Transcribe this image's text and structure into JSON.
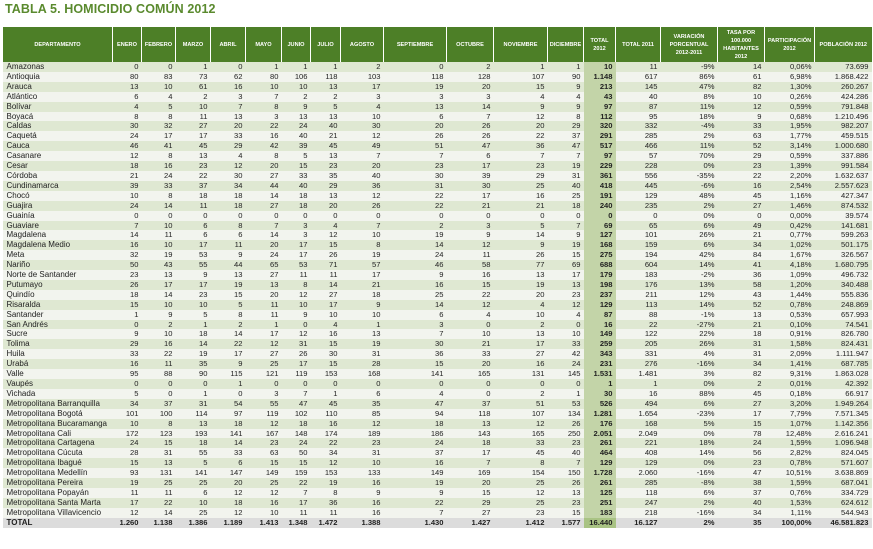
{
  "title": "TABLA 5. HOMICIDIO COMÚN 2012",
  "headers": [
    "DEPARTAMENTO",
    "ENERO",
    "FEBRERO",
    "MARZO",
    "ABRIL",
    "MAYO",
    "JUNIO",
    "JULIO",
    "AGOSTO",
    "SEPTIEMBRE",
    "OCTUBRE",
    "NOVIEMBRE",
    "DICIEMBRE",
    "TOTAL 2012",
    "TOTAL 2011",
    "VARIACIÓN PORCENTUAL 2012-2011",
    "TASA POR 100.000 HABITANTES 2012",
    "PARTICIPACIÓN 2012",
    "POBLACIÓN 2012"
  ],
  "rows": [
    [
      "Amazonas",
      "0",
      "0",
      "1",
      "0",
      "1",
      "1",
      "1",
      "2",
      "0",
      "2",
      "1",
      "1",
      "10",
      "11",
      "-9%",
      "14",
      "0,06%",
      "73.699"
    ],
    [
      "Antioquia",
      "80",
      "83",
      "73",
      "62",
      "80",
      "106",
      "118",
      "103",
      "118",
      "128",
      "107",
      "90",
      "1.148",
      "617",
      "86%",
      "61",
      "6,98%",
      "1.868.422"
    ],
    [
      "Arauca",
      "13",
      "10",
      "61",
      "16",
      "10",
      "10",
      "13",
      "17",
      "19",
      "20",
      "15",
      "9",
      "213",
      "145",
      "47%",
      "82",
      "1,30%",
      "260.267"
    ],
    [
      "Atlántico",
      "6",
      "4",
      "2",
      "3",
      "7",
      "2",
      "2",
      "3",
      "3",
      "3",
      "4",
      "4",
      "43",
      "40",
      "8%",
      "10",
      "0,26%",
      "424.286"
    ],
    [
      "Bolívar",
      "4",
      "5",
      "10",
      "7",
      "8",
      "9",
      "5",
      "4",
      "13",
      "14",
      "9",
      "9",
      "97",
      "87",
      "11%",
      "12",
      "0,59%",
      "791.848"
    ],
    [
      "Boyacá",
      "8",
      "8",
      "11",
      "13",
      "3",
      "13",
      "13",
      "10",
      "6",
      "7",
      "12",
      "8",
      "112",
      "95",
      "18%",
      "9",
      "0,68%",
      "1.210.496"
    ],
    [
      "Caldas",
      "30",
      "32",
      "27",
      "20",
      "22",
      "24",
      "40",
      "30",
      "20",
      "26",
      "20",
      "29",
      "320",
      "332",
      "-4%",
      "33",
      "1,95%",
      "982.207"
    ],
    [
      "Caquetá",
      "24",
      "17",
      "17",
      "33",
      "16",
      "40",
      "21",
      "12",
      "26",
      "26",
      "22",
      "37",
      "291",
      "285",
      "2%",
      "63",
      "1,77%",
      "459.515"
    ],
    [
      "Cauca",
      "46",
      "41",
      "45",
      "29",
      "42",
      "39",
      "45",
      "49",
      "51",
      "47",
      "36",
      "47",
      "517",
      "466",
      "11%",
      "52",
      "3,14%",
      "1.000.680"
    ],
    [
      "Casanare",
      "12",
      "8",
      "13",
      "4",
      "8",
      "5",
      "13",
      "7",
      "7",
      "6",
      "7",
      "7",
      "97",
      "57",
      "70%",
      "29",
      "0,59%",
      "337.886"
    ],
    [
      "Cesar",
      "18",
      "16",
      "23",
      "12",
      "20",
      "15",
      "23",
      "20",
      "23",
      "17",
      "23",
      "19",
      "229",
      "228",
      "0%",
      "23",
      "1,39%",
      "991.584"
    ],
    [
      "Córdoba",
      "21",
      "24",
      "22",
      "30",
      "27",
      "33",
      "35",
      "40",
      "30",
      "39",
      "29",
      "31",
      "361",
      "556",
      "-35%",
      "22",
      "2,20%",
      "1.632.637"
    ],
    [
      "Cundinamarca",
      "39",
      "33",
      "37",
      "34",
      "44",
      "40",
      "29",
      "36",
      "31",
      "30",
      "25",
      "40",
      "418",
      "445",
      "-6%",
      "16",
      "2,54%",
      "2.557.623"
    ],
    [
      "Chocó",
      "10",
      "8",
      "18",
      "18",
      "14",
      "18",
      "13",
      "12",
      "22",
      "17",
      "16",
      "25",
      "191",
      "129",
      "48%",
      "45",
      "1,16%",
      "427.347"
    ],
    [
      "Guajira",
      "24",
      "14",
      "11",
      "18",
      "27",
      "18",
      "20",
      "26",
      "22",
      "21",
      "21",
      "18",
      "240",
      "235",
      "2%",
      "27",
      "1,46%",
      "874.532"
    ],
    [
      "Guainía",
      "0",
      "0",
      "0",
      "0",
      "0",
      "0",
      "0",
      "0",
      "0",
      "0",
      "0",
      "0",
      "0",
      "0",
      "0%",
      "0",
      "0,00%",
      "39.574"
    ],
    [
      "Guaviare",
      "7",
      "10",
      "6",
      "8",
      "7",
      "3",
      "4",
      "7",
      "2",
      "3",
      "5",
      "7",
      "69",
      "65",
      "6%",
      "49",
      "0,42%",
      "141.681"
    ],
    [
      "Magdalena",
      "14",
      "11",
      "6",
      "6",
      "14",
      "3",
      "12",
      "10",
      "19",
      "9",
      "14",
      "9",
      "127",
      "101",
      "26%",
      "21",
      "0,77%",
      "599.263"
    ],
    [
      "Magdalena Medio",
      "16",
      "10",
      "17",
      "11",
      "20",
      "17",
      "15",
      "8",
      "14",
      "12",
      "9",
      "19",
      "168",
      "159",
      "6%",
      "34",
      "1,02%",
      "501.175"
    ],
    [
      "Meta",
      "32",
      "19",
      "53",
      "9",
      "24",
      "17",
      "26",
      "19",
      "24",
      "11",
      "26",
      "15",
      "275",
      "194",
      "42%",
      "84",
      "1,67%",
      "326.567"
    ],
    [
      "Nariño",
      "50",
      "43",
      "55",
      "44",
      "65",
      "53",
      "71",
      "57",
      "46",
      "58",
      "77",
      "69",
      "688",
      "604",
      "14%",
      "41",
      "4,18%",
      "1.680.795"
    ],
    [
      "Norte de Santander",
      "23",
      "13",
      "9",
      "13",
      "27",
      "11",
      "11",
      "17",
      "9",
      "16",
      "13",
      "17",
      "179",
      "183",
      "-2%",
      "36",
      "1,09%",
      "496.732"
    ],
    [
      "Putumayo",
      "26",
      "17",
      "17",
      "19",
      "13",
      "8",
      "14",
      "21",
      "16",
      "15",
      "19",
      "13",
      "198",
      "176",
      "13%",
      "58",
      "1,20%",
      "340.488"
    ],
    [
      "Quindío",
      "18",
      "14",
      "23",
      "15",
      "20",
      "12",
      "27",
      "18",
      "25",
      "22",
      "20",
      "23",
      "237",
      "211",
      "12%",
      "43",
      "1,44%",
      "555.836"
    ],
    [
      "Risaralda",
      "15",
      "10",
      "10",
      "5",
      "11",
      "10",
      "17",
      "9",
      "14",
      "12",
      "4",
      "12",
      "129",
      "113",
      "14%",
      "52",
      "0,78%",
      "248.869"
    ],
    [
      "Santander",
      "1",
      "9",
      "5",
      "8",
      "11",
      "9",
      "10",
      "10",
      "6",
      "4",
      "10",
      "4",
      "87",
      "88",
      "-1%",
      "13",
      "0,53%",
      "657.993"
    ],
    [
      "San Andrés",
      "0",
      "2",
      "1",
      "2",
      "1",
      "0",
      "4",
      "1",
      "3",
      "0",
      "2",
      "0",
      "16",
      "22",
      "-27%",
      "21",
      "0,10%",
      "74.541"
    ],
    [
      "Sucre",
      "9",
      "10",
      "18",
      "14",
      "17",
      "12",
      "16",
      "13",
      "7",
      "10",
      "13",
      "10",
      "149",
      "122",
      "22%",
      "18",
      "0,91%",
      "826.780"
    ],
    [
      "Tolima",
      "29",
      "16",
      "14",
      "22",
      "12",
      "31",
      "15",
      "19",
      "30",
      "21",
      "17",
      "33",
      "259",
      "205",
      "26%",
      "31",
      "1,58%",
      "824.431"
    ],
    [
      "Huila",
      "33",
      "22",
      "19",
      "17",
      "27",
      "26",
      "30",
      "31",
      "36",
      "33",
      "27",
      "42",
      "343",
      "331",
      "4%",
      "31",
      "2,09%",
      "1.111.947"
    ],
    [
      "Urabá",
      "16",
      "11",
      "35",
      "9",
      "25",
      "17",
      "15",
      "28",
      "15",
      "20",
      "16",
      "24",
      "231",
      "276",
      "-16%",
      "34",
      "1,41%",
      "687.785"
    ],
    [
      "Valle",
      "95",
      "88",
      "90",
      "115",
      "121",
      "119",
      "153",
      "168",
      "141",
      "165",
      "131",
      "145",
      "1.531",
      "1.481",
      "3%",
      "82",
      "9,31%",
      "1.863.028"
    ],
    [
      "Vaupés",
      "0",
      "0",
      "0",
      "1",
      "0",
      "0",
      "0",
      "0",
      "0",
      "0",
      "0",
      "0",
      "1",
      "1",
      "0%",
      "2",
      "0,01%",
      "42.392"
    ],
    [
      "Vichada",
      "5",
      "0",
      "1",
      "0",
      "3",
      "7",
      "1",
      "6",
      "4",
      "0",
      "2",
      "1",
      "30",
      "16",
      "88%",
      "45",
      "0,18%",
      "66.917"
    ],
    [
      "Metropolitana Barranquilla",
      "34",
      "37",
      "31",
      "54",
      "55",
      "47",
      "45",
      "35",
      "47",
      "37",
      "51",
      "53",
      "526",
      "494",
      "6%",
      "27",
      "3,20%",
      "1.949.264"
    ],
    [
      "Metropolitana Bogotá",
      "101",
      "100",
      "114",
      "97",
      "119",
      "102",
      "110",
      "85",
      "94",
      "118",
      "107",
      "134",
      "1.281",
      "1.654",
      "-23%",
      "17",
      "7,79%",
      "7.571.345"
    ],
    [
      "Metropolitana Bucaramanga",
      "10",
      "8",
      "13",
      "18",
      "12",
      "18",
      "16",
      "12",
      "18",
      "13",
      "12",
      "26",
      "176",
      "168",
      "5%",
      "15",
      "1,07%",
      "1.142.356"
    ],
    [
      "Metropolitana Cali",
      "172",
      "123",
      "193",
      "141",
      "167",
      "148",
      "174",
      "189",
      "186",
      "143",
      "165",
      "250",
      "2.051",
      "2.049",
      "0%",
      "78",
      "12,48%",
      "2.616.241"
    ],
    [
      "Metropolitana Cartagena",
      "24",
      "15",
      "18",
      "14",
      "23",
      "24",
      "22",
      "23",
      "24",
      "18",
      "33",
      "23",
      "261",
      "221",
      "18%",
      "24",
      "1,59%",
      "1.096.948"
    ],
    [
      "Metropolitana Cúcuta",
      "28",
      "31",
      "55",
      "33",
      "63",
      "50",
      "34",
      "31",
      "37",
      "17",
      "45",
      "40",
      "464",
      "408",
      "14%",
      "56",
      "2,82%",
      "824.045"
    ],
    [
      "Metropolitana Ibagué",
      "15",
      "13",
      "5",
      "6",
      "15",
      "15",
      "12",
      "10",
      "16",
      "7",
      "8",
      "7",
      "129",
      "129",
      "0%",
      "23",
      "0,78%",
      "571.607"
    ],
    [
      "Metropolitana Medellín",
      "93",
      "131",
      "141",
      "147",
      "149",
      "159",
      "153",
      "133",
      "149",
      "169",
      "154",
      "150",
      "1.728",
      "2.060",
      "-16%",
      "47",
      "10,51%",
      "3.638.869"
    ],
    [
      "Metropolitana Pereira",
      "19",
      "25",
      "25",
      "20",
      "25",
      "22",
      "19",
      "16",
      "19",
      "20",
      "25",
      "26",
      "261",
      "285",
      "-8%",
      "38",
      "1,59%",
      "687.041"
    ],
    [
      "Metropolitana Popayán",
      "11",
      "11",
      "6",
      "12",
      "12",
      "7",
      "8",
      "9",
      "9",
      "15",
      "12",
      "13",
      "125",
      "118",
      "6%",
      "37",
      "0,76%",
      "334.729"
    ],
    [
      "Metropolitana Santa Marta",
      "17",
      "22",
      "10",
      "18",
      "16",
      "17",
      "36",
      "16",
      "22",
      "29",
      "25",
      "23",
      "251",
      "247",
      "2%",
      "40",
      "1,53%",
      "624.612"
    ],
    [
      "Metropolitana Villavicencio",
      "12",
      "14",
      "25",
      "12",
      "10",
      "11",
      "11",
      "16",
      "7",
      "27",
      "23",
      "15",
      "183",
      "218",
      "-16%",
      "34",
      "1,11%",
      "544.943"
    ]
  ],
  "total": [
    "TOTAL",
    "1.260",
    "1.138",
    "1.386",
    "1.189",
    "1.413",
    "1.348",
    "1.472",
    "1.388",
    "1.430",
    "1.427",
    "1.412",
    "1.577",
    "16.440",
    "16.127",
    "2%",
    "35",
    "100,00%",
    "46.581.823"
  ]
}
